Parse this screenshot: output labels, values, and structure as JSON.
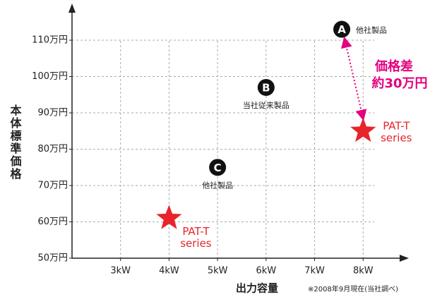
{
  "chart_data": {
    "type": "scatter",
    "y_label": "本体標準価格",
    "x_label": "出力容量",
    "note": "※2008年9月現在(当社調べ)",
    "annotation": [
      "価格差",
      "約30万円"
    ],
    "annotation_color": "#e4007f",
    "xlim": [
      2,
      9
    ],
    "ylim": [
      50,
      120
    ],
    "xticks": [
      {
        "value": 3,
        "label": "3kW"
      },
      {
        "value": 4,
        "label": "4kW"
      },
      {
        "value": 5,
        "label": "5kW"
      },
      {
        "value": 6,
        "label": "6kW"
      },
      {
        "value": 7,
        "label": "7kW"
      },
      {
        "value": 8,
        "label": "8kW"
      }
    ],
    "yticks": [
      {
        "value": 50,
        "label": "50万円"
      },
      {
        "value": 60,
        "label": "60万円"
      },
      {
        "value": 70,
        "label": "70万円"
      },
      {
        "value": 80,
        "label": "80万円"
      },
      {
        "value": 90,
        "label": "90万円"
      },
      {
        "value": 100,
        "label": "100万円"
      },
      {
        "value": 110,
        "label": "110万円"
      }
    ],
    "grid": true,
    "points": [
      {
        "kind": "circle",
        "marker": "A",
        "label": [
          "他社製品"
        ],
        "x": 7.56,
        "y": 113,
        "color": "#111111"
      },
      {
        "kind": "circle",
        "marker": "B",
        "label": [
          "当社従来製品"
        ],
        "x": 6,
        "y": 97,
        "color": "#111111"
      },
      {
        "kind": "circle",
        "marker": "C",
        "label": [
          "他社製品"
        ],
        "x": 5,
        "y": 75,
        "color": "#111111"
      },
      {
        "kind": "star",
        "label": [
          "PAT-T",
          "series"
        ],
        "x": 4,
        "y": 61,
        "color": "#e8242a"
      },
      {
        "kind": "star",
        "label": [
          "PAT-T",
          "series"
        ],
        "x": 8,
        "y": 85,
        "color": "#e8242a"
      }
    ]
  }
}
